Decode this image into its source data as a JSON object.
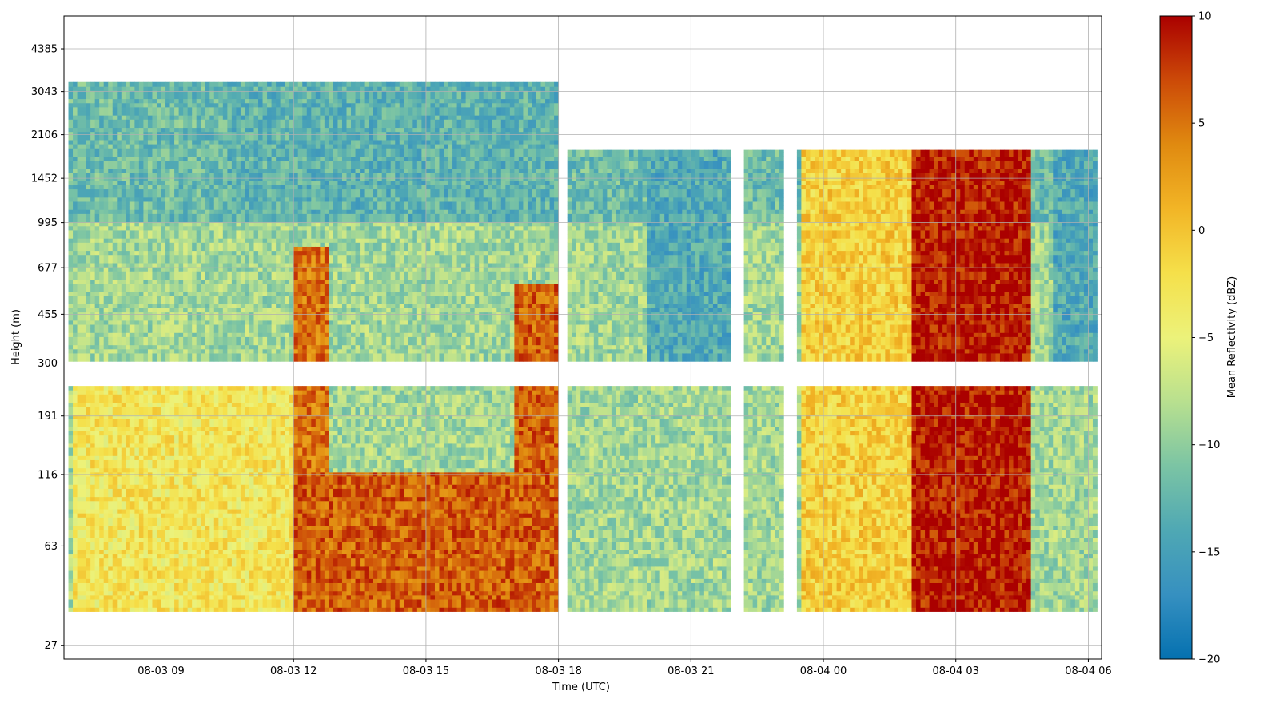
{
  "chart_data": {
    "type": "heatmap",
    "title": "",
    "xlabel": "Time (UTC)",
    "ylabel": "Height (m)",
    "x_ticks": [
      "08-03 09",
      "08-03 12",
      "08-03 15",
      "08-03 18",
      "08-03 21",
      "08-04 00",
      "08-04 03",
      "08-04 06"
    ],
    "x_tick_hours": [
      9,
      12,
      15,
      18,
      21,
      24,
      27,
      30
    ],
    "xlim_hours": [
      6.8,
      30.3
    ],
    "y_ticks": [
      "27",
      "63",
      "116",
      "191",
      "300",
      "455",
      "677",
      "995",
      "1452",
      "2106",
      "3043",
      "4385"
    ],
    "y_tick_values": [
      27,
      63,
      116,
      191,
      300,
      455,
      677,
      995,
      1452,
      2106,
      3043,
      4385
    ],
    "ylim": [
      24,
      5800
    ],
    "y_scale": "log",
    "grid": true,
    "colorbar": {
      "label": "Mean Reflectivity (dBZ)",
      "ticks": [
        "10",
        "5",
        "0",
        "−5",
        "−10",
        "−15",
        "−20"
      ],
      "tick_values": [
        10,
        5,
        0,
        -5,
        -10,
        -15,
        -20
      ],
      "range": [
        -20,
        10
      ],
      "colormap": "Spectral_r",
      "colors": [
        "#0571b0",
        "#3690c0",
        "#4fa8b4",
        "#7bc4a4",
        "#b8e08f",
        "#ecf27a",
        "#f5e04a",
        "#f2b526",
        "#e08a10",
        "#cc4a08",
        "#aa0000"
      ]
    },
    "blocks": [
      {
        "t0": 6.9,
        "t1": 18.0,
        "z0": 36,
        "z1": 3300,
        "gap": [
          245,
          300
        ]
      },
      {
        "t0": 18.2,
        "t1": 21.9,
        "z0": 36,
        "z1": 1850,
        "gap": [
          245,
          300
        ]
      },
      {
        "t0": 22.2,
        "t1": 23.1,
        "z0": 36,
        "z1": 1850,
        "gap": [
          245,
          300
        ]
      },
      {
        "t0": 23.4,
        "t1": 30.2,
        "z0": 36,
        "z1": 1850,
        "gap": [
          245,
          300
        ]
      }
    ],
    "features": [
      {
        "t0": 26.0,
        "t1": 28.7,
        "z0": 36,
        "z1": 1850,
        "dbz": 9
      },
      {
        "t0": 17.0,
        "t1": 18.0,
        "z0": 36,
        "z1": 600,
        "dbz": 6
      },
      {
        "t0": 12.0,
        "t1": 12.8,
        "z0": 36,
        "z1": 800,
        "dbz": 5
      },
      {
        "t0": 12.0,
        "t1": 18.0,
        "z0": 36,
        "z1": 120,
        "dbz": 6
      },
      {
        "t0": 7.0,
        "t1": 12.0,
        "z0": 36,
        "z1": 300,
        "dbz": -3
      },
      {
        "t0": 23.5,
        "t1": 26.0,
        "z0": 36,
        "z1": 1850,
        "dbz": -1
      },
      {
        "t0": 29.2,
        "t1": 30.2,
        "z0": 300,
        "z1": 1850,
        "dbz": -14
      },
      {
        "t0": 10.5,
        "t1": 18.0,
        "z0": 1000,
        "z1": 3300,
        "dbz": -13
      },
      {
        "t0": 20.0,
        "t1": 21.9,
        "z0": 300,
        "z1": 1850,
        "dbz": -14
      }
    ]
  }
}
